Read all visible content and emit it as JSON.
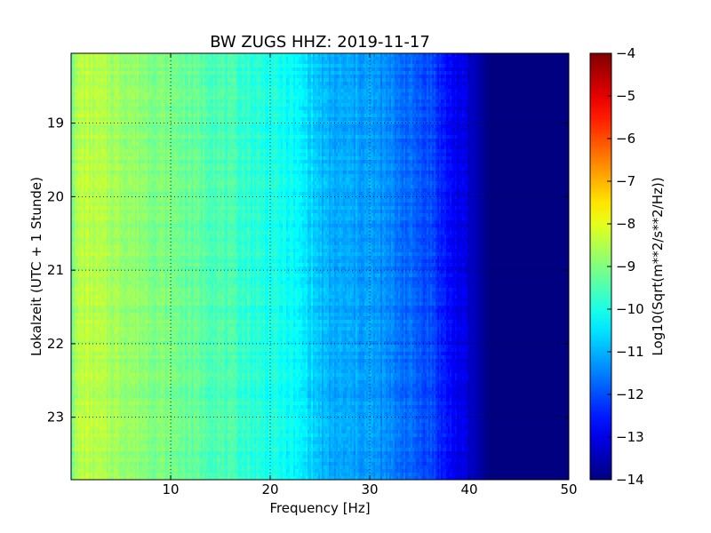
{
  "chart_data": {
    "type": "heatmap",
    "title": "BW ZUGS HHZ: 2019-11-17",
    "xlabel": "Frequency [Hz]",
    "ylabel": "Lokalzeit (UTC + 1 Stunde)",
    "xlim": [
      0,
      50
    ],
    "ylim": [
      18.05,
      23.85
    ],
    "x_ticks": [
      10,
      20,
      30,
      40,
      50
    ],
    "y_ticks": [
      19,
      20,
      21,
      22,
      23
    ],
    "grid": true,
    "colormap": "jet",
    "colorbar": {
      "label": "Log10(Sqrt(m**2/s**2/Hz))",
      "range": [
        -14,
        -4
      ],
      "ticks": [
        -4,
        -5,
        -6,
        -7,
        -8,
        -9,
        -10,
        -11,
        -12,
        -13,
        -14
      ]
    },
    "spectrum_profile": {
      "frequency_hz": [
        0,
        1,
        5,
        10,
        15,
        20,
        22,
        24,
        25,
        26,
        30,
        33,
        35,
        36.5,
        37,
        38,
        40,
        41,
        42,
        50
      ],
      "log10_amplitude": [
        -9.0,
        -8.4,
        -8.7,
        -9.1,
        -9.5,
        -10.0,
        -10.2,
        -10.6,
        -10.9,
        -11.1,
        -11.2,
        -11.6,
        -11.9,
        -12.1,
        -12.4,
        -12.7,
        -13.2,
        -13.6,
        -14.0,
        -14.0
      ]
    }
  }
}
